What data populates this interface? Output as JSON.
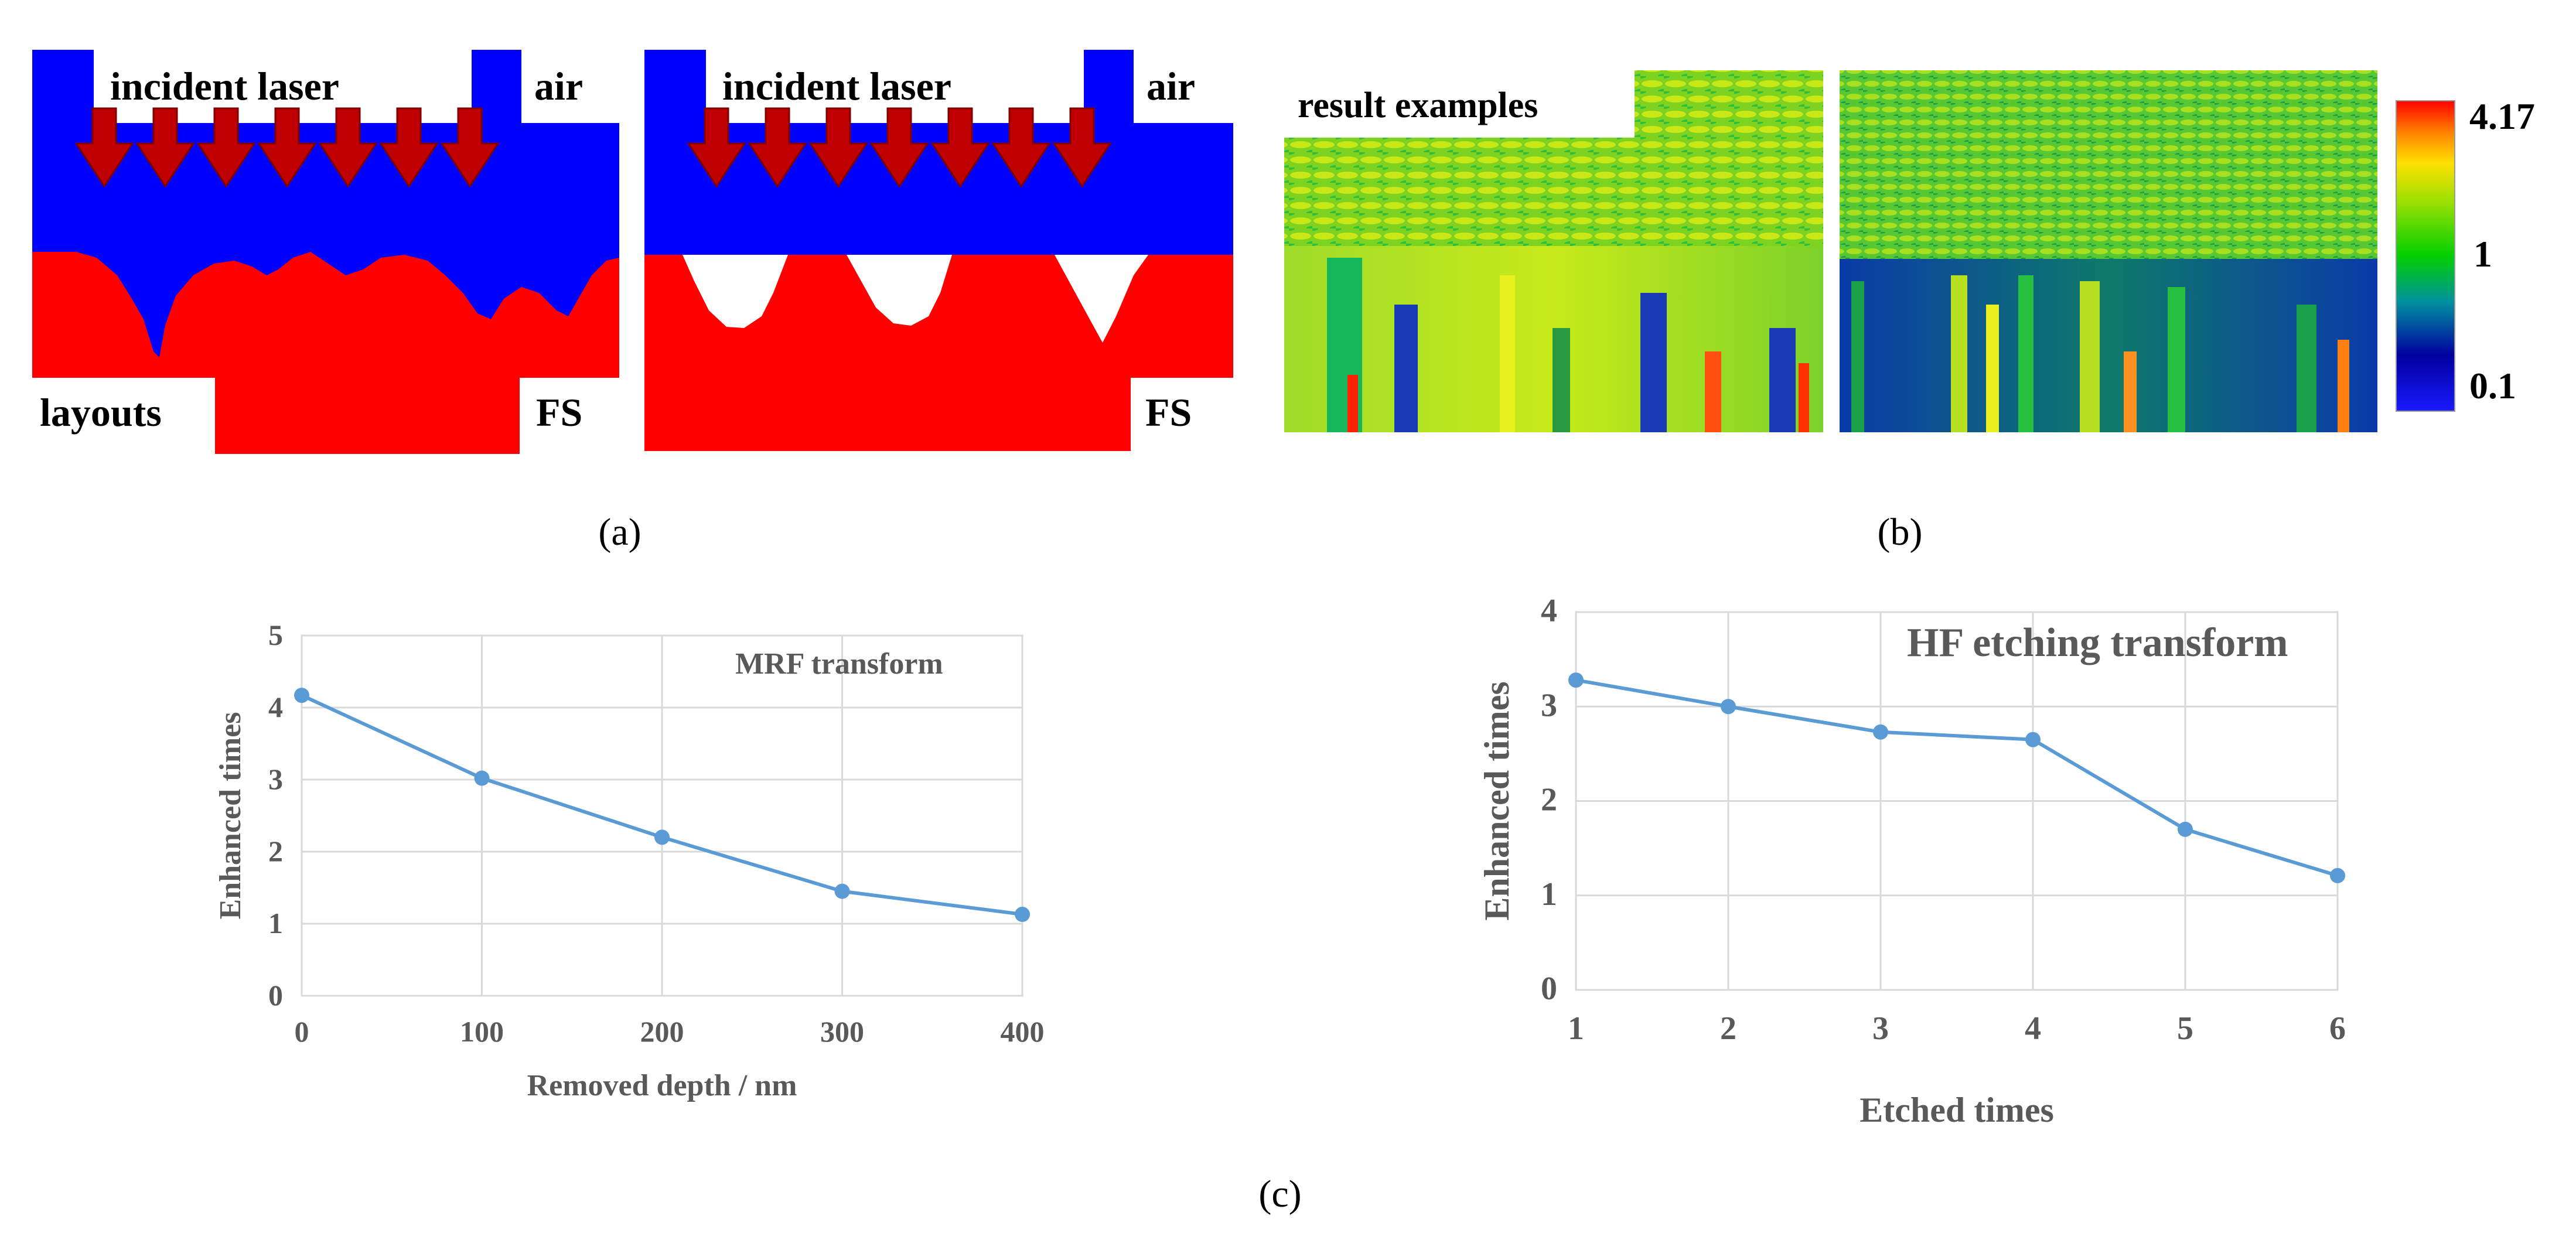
{
  "figure": {
    "panel_a": {
      "caption": "(a)",
      "layout_left": {
        "incident_label": "incident laser",
        "air_label": "air",
        "corner_label": "layouts",
        "fs_label": "FS"
      },
      "layout_right": {
        "incident_label": "incident laser",
        "air_label": "air",
        "fs_label": "FS"
      },
      "colors": {
        "air": "#0000ff",
        "substrate": "#ff0000",
        "arrow": "#c00000"
      }
    },
    "panel_b": {
      "caption": "(b)",
      "label": "result examples",
      "colorbar": {
        "max_label": "4.17",
        "mid_label": "1",
        "min_label": "0.1"
      }
    },
    "panel_c": {
      "caption": "(c)"
    }
  },
  "chart_data": [
    {
      "type": "line",
      "title": "MRF transform",
      "xlabel": "Removed depth / nm",
      "ylabel": "Enhanced times",
      "x": [
        0,
        100,
        200,
        300,
        400
      ],
      "values": [
        4.17,
        3.02,
        2.2,
        1.45,
        1.13
      ],
      "xlim": [
        0,
        400
      ],
      "ylim": [
        0,
        5
      ],
      "xticks": [
        "0",
        "100",
        "200",
        "300",
        "400"
      ],
      "yticks": [
        "0",
        "1",
        "2",
        "3",
        "4",
        "5"
      ],
      "grid": true,
      "color": "#5b9bd5"
    },
    {
      "type": "line",
      "title": "HF etching transform",
      "xlabel": "Etched times",
      "ylabel": "Enhanced times",
      "x": [
        1,
        2,
        3,
        4,
        5,
        6
      ],
      "values": [
        3.28,
        3.0,
        2.73,
        2.65,
        1.7,
        1.21
      ],
      "xlim": [
        1,
        6
      ],
      "ylim": [
        0,
        4
      ],
      "xticks": [
        "1",
        "2",
        "3",
        "4",
        "5",
        "6"
      ],
      "yticks": [
        "0",
        "1",
        "2",
        "3",
        "4"
      ],
      "grid": true,
      "color": "#5b9bd5"
    }
  ]
}
